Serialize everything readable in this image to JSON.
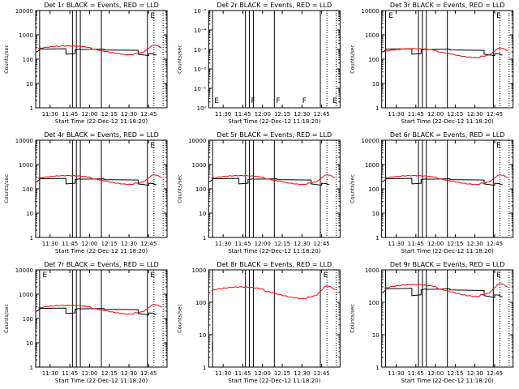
{
  "colors": {
    "background": "#ffffff",
    "axes": "#000000",
    "events": "#000000",
    "lld": "#ff0000"
  },
  "chart_data": [
    {
      "type": "line",
      "title": "Det 1r BLACK = Events, RED = LLD",
      "xlabel": "Start Time (22-Dec-12 11:18:20)",
      "ylabel": "Counts/sec",
      "xticks": [
        "11:30",
        "11:45",
        "12:00",
        "12:15",
        "12:30",
        "12:45"
      ],
      "yticks": [
        "1",
        "10",
        "100",
        "1000",
        "10000"
      ],
      "ylim": [
        1,
        10000
      ],
      "yscale": "log",
      "annotations": [
        "E"
      ],
      "series": [
        {
          "name": "Events",
          "color": "black",
          "style": "events"
        },
        {
          "name": "LLD",
          "color": "red",
          "style": "lld"
        }
      ]
    },
    {
      "type": "line",
      "title": "Det 2r BLACK = Events, RED = LLD",
      "xlabel": "Start Time (22-Dec-12 11:18:20)",
      "ylabel": "Counts/sec",
      "xticks": [
        "11:30",
        "11:45",
        "12:00",
        "12:15",
        "12:30",
        "12:45"
      ],
      "yticks": [
        "10⁰",
        "10⁻¹",
        "10⁻²",
        "10⁻³",
        "10⁻⁴",
        "10⁻⁵"
      ],
      "ylim": [
        1e-06,
        1
      ],
      "yscale": "log",
      "annotations": [
        "E",
        "F",
        "F",
        "F",
        "E"
      ],
      "series": []
    },
    {
      "type": "line",
      "title": "Det 3r BLACK = Events, RED = LLD",
      "xlabel": "Start Time (22-Dec-12 11:18:20)",
      "ylabel": "Counts/sec",
      "xticks": [
        "11:30",
        "11:45",
        "12:00",
        "12:15",
        "12:30",
        "12:45"
      ],
      "yticks": [
        "1",
        "10",
        "100",
        "1000",
        "10000"
      ],
      "ylim": [
        1,
        10000
      ],
      "yscale": "log",
      "annotations": [
        "E",
        "E"
      ],
      "series": [
        {
          "name": "Events",
          "color": "black",
          "style": "events"
        },
        {
          "name": "LLD",
          "color": "red",
          "style": "lld"
        }
      ]
    },
    {
      "type": "line",
      "title": "Det 4r BLACK = Events, RED = LLD",
      "xlabel": "Start Time (22-Dec-12 11:18:20)",
      "ylabel": "Counts/sec",
      "xticks": [
        "11:30",
        "11:45",
        "12:00",
        "12:15",
        "12:30",
        "12:45"
      ],
      "yticks": [
        "1",
        "10",
        "100",
        "1000",
        "10000"
      ],
      "ylim": [
        1,
        10000
      ],
      "yscale": "log",
      "annotations": [
        "E"
      ],
      "series": [
        {
          "name": "Events",
          "color": "black",
          "style": "events"
        },
        {
          "name": "LLD",
          "color": "red",
          "style": "lld"
        }
      ]
    },
    {
      "type": "line",
      "title": "Det 5r BLACK = Events, RED = LLD",
      "xlabel": "Start Time (22-Dec-12 11:18:20)",
      "ylabel": "Counts/sec",
      "xticks": [
        "11:30",
        "11:45",
        "12:00",
        "12:15",
        "12:30",
        "12:45"
      ],
      "yticks": [
        "1",
        "10",
        "100",
        "1000",
        "10000"
      ],
      "ylim": [
        1,
        10000
      ],
      "yscale": "log",
      "annotations": [],
      "series": [
        {
          "name": "Events",
          "color": "black",
          "style": "events"
        },
        {
          "name": "LLD",
          "color": "red",
          "style": "lld"
        }
      ]
    },
    {
      "type": "line",
      "title": "Det 6r BLACK = Events, RED = LLD",
      "xlabel": "Start Time (22-Dec-12 11:18:20)",
      "ylabel": "Counts/sec",
      "xticks": [
        "11:30",
        "11:45",
        "12:00",
        "12:15",
        "12:30",
        "12:45"
      ],
      "yticks": [
        "1",
        "10",
        "100",
        "1000",
        "10000"
      ],
      "ylim": [
        1,
        10000
      ],
      "yscale": "log",
      "annotations": [
        "E"
      ],
      "series": [
        {
          "name": "Events",
          "color": "black",
          "style": "events"
        },
        {
          "name": "LLD",
          "color": "red",
          "style": "lld"
        }
      ]
    },
    {
      "type": "line",
      "title": "Det 7r BLACK = Events, RED = LLD",
      "xlabel": "Start Time (22-Dec-12 11:18:20)",
      "ylabel": "Counts/sec",
      "xticks": [
        "11:30",
        "11:45",
        "12:00",
        "12:15",
        "12:30",
        "12:45"
      ],
      "yticks": [
        "1",
        "10",
        "100",
        "1000",
        "10000"
      ],
      "ylim": [
        1,
        10000
      ],
      "yscale": "log",
      "annotations": [
        "E",
        "E"
      ],
      "series": [
        {
          "name": "Events",
          "color": "black",
          "style": "events"
        },
        {
          "name": "LLD",
          "color": "red",
          "style": "lld"
        }
      ]
    },
    {
      "type": "line",
      "title": "Det 8r BLACK = Events, RED = LLD",
      "xlabel": "Start Time (22-Dec-12 11:18:20)",
      "ylabel": "Counts/sec",
      "xticks": [
        "11:30",
        "11:45",
        "12:00",
        "12:15",
        "12:30",
        "12:45"
      ],
      "yticks": [
        "1",
        "10",
        "100",
        "1000"
      ],
      "ylim": [
        1,
        1000
      ],
      "yscale": "log",
      "annotations": [
        "E"
      ],
      "series": [
        {
          "name": "LLD",
          "color": "red",
          "style": "lld8"
        }
      ]
    },
    {
      "type": "line",
      "title": "Det 9r BLACK = Events, RED = LLD",
      "xlabel": "Start Time (22-Dec-12 11:18:20)",
      "ylabel": "Counts/sec",
      "xticks": [
        "11:30",
        "11:45",
        "12:00",
        "12:15",
        "12:30",
        "12:45"
      ],
      "yticks": [
        "1",
        "10",
        "100",
        "1000"
      ],
      "ylim": [
        1,
        1000
      ],
      "yscale": "log",
      "annotations": [
        "E"
      ],
      "series": [
        {
          "name": "Events",
          "color": "black",
          "style": "events"
        },
        {
          "name": "LLD",
          "color": "red",
          "style": "lld"
        }
      ]
    }
  ]
}
